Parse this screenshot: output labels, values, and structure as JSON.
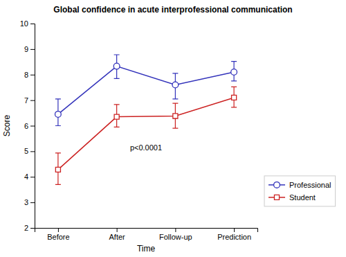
{
  "chart_data": {
    "type": "line",
    "title": "Global confidence in acute interprofessional communication",
    "x_label": "Time",
    "y_label": "Score",
    "categories": [
      "Before",
      "After",
      "Follow-up",
      "Prediction"
    ],
    "series": [
      {
        "name": "Professional",
        "color": "#3333bb",
        "marker": "circle",
        "line_style": "solid",
        "values": [
          6.45,
          8.33,
          7.6,
          8.1
        ],
        "ci_low": [
          6.0,
          7.85,
          7.05,
          7.75
        ],
        "ci_high": [
          7.05,
          8.78,
          8.05,
          8.52
        ]
      },
      {
        "name": "Student",
        "color": "#cc2222",
        "marker": "square",
        "line_style": "solid",
        "values": [
          4.28,
          6.35,
          6.38,
          7.1
        ],
        "ci_low": [
          3.7,
          5.95,
          5.9,
          6.72
        ],
        "ci_high": [
          4.93,
          6.83,
          6.88,
          7.52
        ]
      }
    ],
    "ylim": [
      2,
      10
    ],
    "yticks": [
      2,
      3,
      4,
      5,
      6,
      7,
      8,
      9,
      10
    ],
    "annotations": [
      "p<0.0001"
    ],
    "legend": "right",
    "grid": false
  }
}
